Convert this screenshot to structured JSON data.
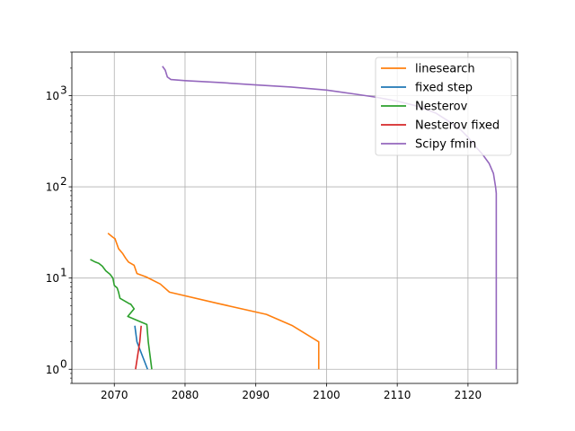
{
  "chart_data": {
    "type": "line",
    "title": "",
    "xlabel": "",
    "ylabel": "",
    "xlim": [
      2064,
      2127
    ],
    "ylim": [
      0.7,
      3000
    ],
    "yscale": "log",
    "grid": true,
    "legend_position": "top-right",
    "x_ticks": [
      2070,
      2080,
      2090,
      2100,
      2110,
      2120
    ],
    "y_ticks": [
      {
        "value": 1,
        "base": "10",
        "exp": "0"
      },
      {
        "value": 10,
        "base": "10",
        "exp": "1"
      },
      {
        "value": 100,
        "base": "10",
        "exp": "2"
      },
      {
        "value": 1000,
        "base": "10",
        "exp": "3"
      }
    ],
    "series": [
      {
        "name": "linesearch",
        "color": "#ff7f0e",
        "points": [
          [
            2069.1,
            31
          ],
          [
            2069.8,
            28
          ],
          [
            2070.1,
            27
          ],
          [
            2070.6,
            21
          ],
          [
            2071.2,
            18.5
          ],
          [
            2071.6,
            16.5
          ],
          [
            2072.0,
            15
          ],
          [
            2072.8,
            13.8
          ],
          [
            2073.2,
            11.2
          ],
          [
            2074.5,
            10.3
          ],
          [
            2076.5,
            8.6
          ],
          [
            2077.8,
            7
          ],
          [
            2084.5,
            5.3
          ],
          [
            2091.5,
            4
          ],
          [
            2095.2,
            3
          ],
          [
            2098.9,
            2
          ],
          [
            2098.9,
            1
          ]
        ]
      },
      {
        "name": "fixed step",
        "color": "#1f77b4",
        "points": [
          [
            2072.9,
            3
          ],
          [
            2073.2,
            2
          ],
          [
            2074.7,
            1
          ]
        ]
      },
      {
        "name": "Nesterov",
        "color": "#2ca02c",
        "points": [
          [
            2066.6,
            16
          ],
          [
            2067.3,
            15
          ],
          [
            2067.8,
            14.5
          ],
          [
            2068.3,
            13.5
          ],
          [
            2068.8,
            12
          ],
          [
            2069.4,
            11
          ],
          [
            2069.8,
            10
          ],
          [
            2070.0,
            8.3
          ],
          [
            2070.4,
            7.8
          ],
          [
            2070.6,
            7
          ],
          [
            2070.8,
            6
          ],
          [
            2072.2,
            5.2
          ],
          [
            2072.3,
            5.2
          ],
          [
            2072.8,
            4.6
          ],
          [
            2071.9,
            3.8
          ],
          [
            2074.6,
            3.1
          ],
          [
            2074.8,
            2
          ],
          [
            2075.3,
            1
          ]
        ]
      },
      {
        "name": "Nesterov fixed",
        "color": "#d62728",
        "points": [
          [
            2073.8,
            3
          ],
          [
            2073.6,
            2
          ],
          [
            2073.0,
            1
          ]
        ]
      },
      {
        "name": "Scipy fmin",
        "color": "#9467bd",
        "points": [
          [
            2076.8,
            2100
          ],
          [
            2077.2,
            1900
          ],
          [
            2077.5,
            1600
          ],
          [
            2078.0,
            1500
          ],
          [
            2080.0,
            1460
          ],
          [
            2085.0,
            1390
          ],
          [
            2090.0,
            1310
          ],
          [
            2095.0,
            1240
          ],
          [
            2100.0,
            1150
          ],
          [
            2104.0,
            1040
          ],
          [
            2107.0,
            960
          ],
          [
            2110.0,
            870
          ],
          [
            2113.0,
            760
          ],
          [
            2115.5,
            640
          ],
          [
            2117.5,
            510
          ],
          [
            2119.0,
            420
          ],
          [
            2120.0,
            350
          ],
          [
            2121.0,
            280
          ],
          [
            2122.0,
            230
          ],
          [
            2123.0,
            180
          ],
          [
            2123.6,
            140
          ],
          [
            2123.9,
            100
          ],
          [
            2124.0,
            85
          ],
          [
            2124.0,
            50
          ],
          [
            2124.0,
            10
          ],
          [
            2124.0,
            2
          ],
          [
            2124.0,
            1
          ]
        ]
      }
    ]
  }
}
